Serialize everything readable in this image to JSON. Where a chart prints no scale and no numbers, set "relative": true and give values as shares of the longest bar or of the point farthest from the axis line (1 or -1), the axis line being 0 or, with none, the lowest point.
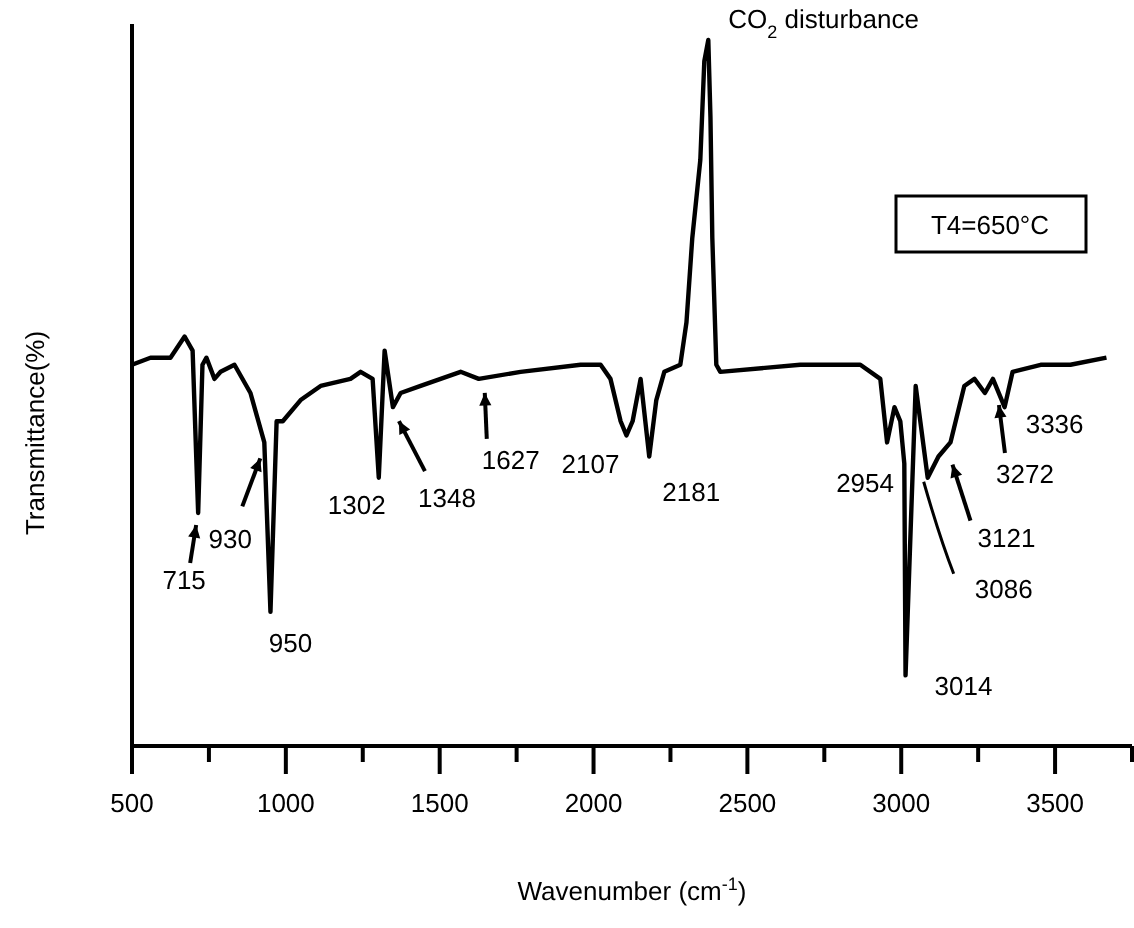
{
  "chart_data": {
    "type": "line",
    "relative": true,
    "xlabel": "Wavenumber (cm$^{-1}$)",
    "ylabel": "Transmittance(%)",
    "xlim": [
      500,
      3750
    ],
    "xticks": [
      500,
      {
        "value": 750,
        "label": null
      },
      1000,
      {
        "value": 1250,
        "label": null
      },
      1500,
      {
        "value": 1750,
        "label": null
      },
      2000,
      {
        "value": 2250,
        "label": null
      },
      2500,
      {
        "value": 2750,
        "label": null
      },
      3000,
      {
        "value": 3250,
        "label": null
      },
      3500,
      {
        "value": 3750,
        "label": null
      }
    ],
    "series": [
      {
        "color": "#000000",
        "x": [
          500,
          560,
          625,
          671,
          697,
          715,
          729,
          742,
          768,
          788,
          833,
          885,
          930,
          950,
          970,
          990,
          1048,
          1113,
          1210,
          1243,
          1282,
          1302,
          1321,
          1348,
          1373,
          1438,
          1568,
          1627,
          1763,
          1958,
          2023,
          2055,
          2088,
          2107,
          2127,
          2153,
          2181,
          2204,
          2230,
          2282,
          2302,
          2321,
          2347,
          2360,
          2373,
          2380,
          2386,
          2399,
          2412,
          2672,
          2867,
          2932,
          2954,
          2978,
          2997,
          3010,
          3014,
          3047,
          3086,
          3121,
          3160,
          3205,
          3238,
          3272,
          3298,
          3336,
          3362,
          3453,
          3550,
          3667
        ],
        "values": [
          0.54,
          0.55,
          0.55,
          0.58,
          0.56,
          0.33,
          0.54,
          0.55,
          0.52,
          0.53,
          0.54,
          0.5,
          0.43,
          0.19,
          0.46,
          0.46,
          0.49,
          0.51,
          0.52,
          0.53,
          0.52,
          0.38,
          0.56,
          0.48,
          0.5,
          0.51,
          0.53,
          0.52,
          0.53,
          0.54,
          0.54,
          0.52,
          0.46,
          0.44,
          0.46,
          0.52,
          0.41,
          0.49,
          0.53,
          0.54,
          0.6,
          0.72,
          0.83,
          0.97,
          1,
          0.89,
          0.72,
          0.54,
          0.53,
          0.54,
          0.54,
          0.52,
          0.43,
          0.48,
          0.46,
          0.4,
          0.1,
          0.51,
          0.38,
          0.41,
          0.43,
          0.51,
          0.52,
          0.5,
          0.52,
          0.48,
          0.53,
          0.54,
          0.54,
          0.55
        ]
      }
    ],
    "annotations": [
      {
        "text": "715",
        "x": 715,
        "y": 0.33
      },
      {
        "text": "930",
        "x": 930,
        "y": 0.43
      },
      {
        "text": "950",
        "x": 950,
        "y": 0.19
      },
      {
        "text": "1302",
        "x": 1302,
        "y": 0.38
      },
      {
        "text": "1348",
        "x": 1348,
        "y": 0.48
      },
      {
        "text": "1627",
        "x": 1627,
        "y": 0.52
      },
      {
        "text": "2107",
        "x": 2107,
        "y": 0.44
      },
      {
        "text": "2181",
        "x": 2181,
        "y": 0.41
      },
      {
        "text": "2954",
        "x": 2954,
        "y": 0.43
      },
      {
        "text": "3014",
        "x": 3014,
        "y": 0.1
      },
      {
        "text": "3086",
        "x": 3086,
        "y": 0.38
      },
      {
        "text": "3121",
        "x": 3121,
        "y": 0.41
      },
      {
        "text": "3272",
        "x": 3272,
        "y": 0.5
      },
      {
        "text": "3336",
        "x": 3336,
        "y": 0.48
      },
      {
        "text": "CO$_{2}$ disturbance",
        "x": 2373,
        "y": 1
      },
      "T4=650°C"
    ]
  }
}
